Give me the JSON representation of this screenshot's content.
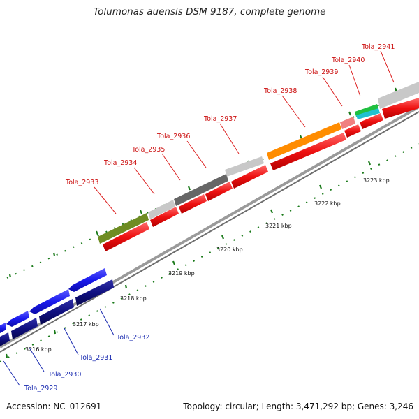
{
  "title": "Tolumonas auensis DSM 9187, complete genome",
  "footer": {
    "accession": "Accession: NC_012691",
    "summary": "Topology: circular; Length: 3,471,292 bp; Genes: 3,246"
  },
  "axis": {
    "unit": "kbp",
    "ticks": [
      {
        "label": "3216 kbp"
      },
      {
        "label": "3217 kbp"
      },
      {
        "label": "3218 kbp"
      },
      {
        "label": "3219 kbp"
      },
      {
        "label": "3220 kbp"
      },
      {
        "label": "3221 kbp"
      },
      {
        "label": "3222 kbp"
      },
      {
        "label": "3223 kbp"
      }
    ]
  },
  "genes": {
    "reverse_strand": [
      {
        "label": "Tola_2929"
      },
      {
        "label": "Tola_2930"
      },
      {
        "label": "Tola_2931"
      },
      {
        "label": "Tola_2932"
      }
    ],
    "forward_strand": [
      {
        "label": "Tola_2933",
        "color": "#6e8c22"
      },
      {
        "label": "Tola_2934",
        "color": "#c8c8c8"
      },
      {
        "label": "Tola_2935",
        "color": "#666666"
      },
      {
        "label": "Tola_2936",
        "color": "#666666"
      },
      {
        "label": "Tola_2937",
        "color": "#c8c8c8"
      },
      {
        "label": "Tola_2938",
        "color": "#ff8c00"
      },
      {
        "label": "Tola_2939",
        "color": "#f08080"
      },
      {
        "label": "Tola_2940",
        "color": "#20c040"
      },
      {
        "label": "Tola_2941",
        "color": "#c8c8c8"
      }
    ]
  },
  "colors": {
    "forward_cds": "#ee1111",
    "reverse_cds": "#1a1aee",
    "reverse_inner": "#101080",
    "tick_major": "#1a7a1a",
    "forward_label": "#cc1111",
    "reverse_label": "#1a2bb0"
  }
}
